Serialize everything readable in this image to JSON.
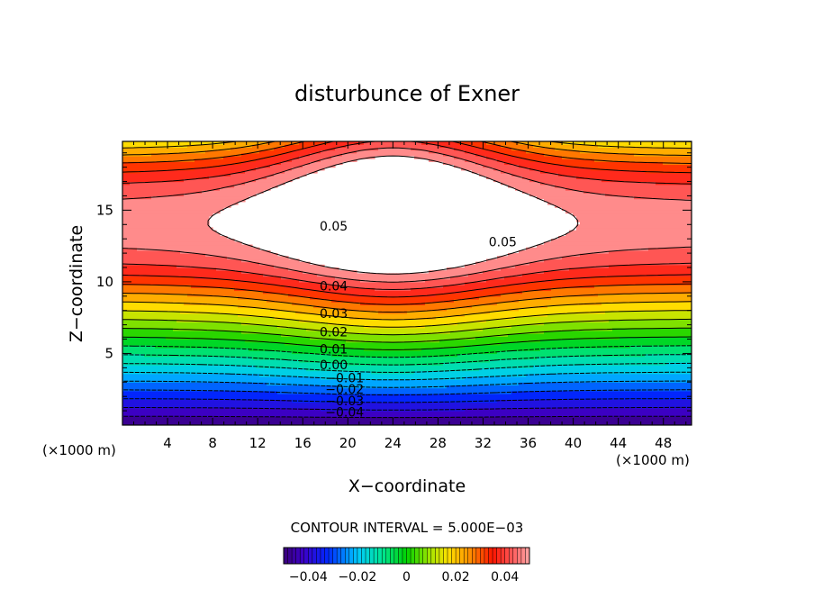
{
  "chart_data": {
    "type": "contour",
    "title": "disturbunce of Exner",
    "xlabel": "X−coordinate",
    "ylabel": "Z−coordinate",
    "x_unit_left": "(×1000 m)",
    "x_unit_right": "(×1000 m)",
    "xlim": [
      0,
      50.5
    ],
    "ylim": [
      0,
      19.8
    ],
    "xticks": [
      4,
      8,
      12,
      16,
      20,
      24,
      28,
      32,
      36,
      40,
      44,
      48
    ],
    "yticks": [
      5,
      10,
      15
    ],
    "contour_interval_text": "CONTOUR INTERVAL = 5.000E−03",
    "contour_interval": 0.005,
    "contour_labels": [
      {
        "text": "0.05",
        "x": 17.5,
        "z": 13.9
      },
      {
        "text": "0.05",
        "x": 32.5,
        "z": 12.8
      },
      {
        "text": "0.04",
        "x": 17.5,
        "z": 9.7
      },
      {
        "text": "0.03",
        "x": 17.5,
        "z": 7.8
      },
      {
        "text": "0.02",
        "x": 17.5,
        "z": 6.5
      },
      {
        "text": "0.01",
        "x": 17.5,
        "z": 5.3
      },
      {
        "text": "0.00",
        "x": 17.5,
        "z": 4.2
      },
      {
        "text": "−0.01",
        "x": 18.0,
        "z": 3.3
      },
      {
        "text": "−0.02",
        "x": 18.0,
        "z": 2.5
      },
      {
        "text": "−0.03",
        "x": 18.0,
        "z": 1.7
      },
      {
        "text": "−0.04",
        "x": 18.0,
        "z": 0.9
      }
    ],
    "levels": [
      -0.05,
      -0.045,
      -0.04,
      -0.035,
      -0.03,
      -0.025,
      -0.02,
      -0.015,
      -0.01,
      -0.005,
      0.0,
      0.005,
      0.01,
      0.015,
      0.02,
      0.025,
      0.03,
      0.035,
      0.04,
      0.045,
      0.05
    ],
    "colorbar": {
      "range": [
        -0.05,
        0.05
      ],
      "tick_values": [
        -0.04,
        -0.02,
        0,
        0.02,
        0.04
      ],
      "tick_labels": [
        "−0.04",
        "−0.02",
        "0",
        "0.02",
        "0.04"
      ]
    },
    "description_colors": {
      "low": "#3a007a",
      "high": "#ffa6a6",
      "above_max": "#ffffff"
    }
  }
}
